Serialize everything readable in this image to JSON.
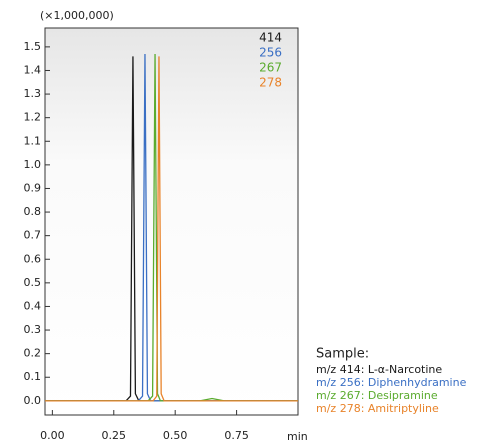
{
  "chart_data": {
    "type": "line",
    "y_unit_label": "(×1,000,000)",
    "x_unit_label": "min",
    "sample_title": "Sample:",
    "xlim": [
      -0.03,
      1.0
    ],
    "ylim": [
      -0.06,
      1.58
    ],
    "xticks": [
      {
        "value": 0,
        "label": "0.00"
      },
      {
        "value": 0.25,
        "label": "0.25"
      },
      {
        "value": 0.5,
        "label": "0.50"
      },
      {
        "value": 0.75,
        "label": "0.75"
      }
    ],
    "yticks": [
      {
        "value": 0,
        "label": "0.0"
      },
      {
        "value": 0.1,
        "label": "0.1"
      },
      {
        "value": 0.2,
        "label": "0.2"
      },
      {
        "value": 0.3,
        "label": "0.3"
      },
      {
        "value": 0.4,
        "label": "0.4"
      },
      {
        "value": 0.5,
        "label": "0.5"
      },
      {
        "value": 0.6,
        "label": "0.6"
      },
      {
        "value": 0.7,
        "label": "0.7"
      },
      {
        "value": 0.8,
        "label": "0.8"
      },
      {
        "value": 0.9,
        "label": "0.9"
      },
      {
        "value": 1,
        "label": "1.0"
      },
      {
        "value": 1.1,
        "label": "1.1"
      },
      {
        "value": 1.2,
        "label": "1.2"
      },
      {
        "value": 1.3,
        "label": "1.3"
      },
      {
        "value": 1.4,
        "label": "1.4"
      },
      {
        "value": 1.5,
        "label": "1.5"
      }
    ],
    "series": [
      {
        "name": "414",
        "description": "m/z 414: L-α-Narcotine",
        "color": "#1a1a1a",
        "x": [
          -0.03,
          0.3,
          0.318,
          0.328,
          0.338,
          0.352,
          1.0
        ],
        "values": [
          0,
          0,
          0.02,
          1.46,
          0.03,
          0,
          0
        ]
      },
      {
        "name": "256",
        "description": "m/z 256: Diphenhydramine",
        "color": "#3a6fc4",
        "x": [
          -0.03,
          0.35,
          0.367,
          0.377,
          0.387,
          0.4,
          1.0
        ],
        "values": [
          0,
          0,
          0.02,
          1.47,
          0.03,
          0,
          0
        ]
      },
      {
        "name": "267",
        "description": "m/z 267: Desipramine",
        "color": "#5aab2e",
        "x": [
          -0.03,
          0.39,
          0.408,
          0.418,
          0.428,
          0.44,
          0.6,
          0.65,
          0.7,
          1.0
        ],
        "values": [
          0,
          0,
          0.02,
          1.47,
          0.03,
          0,
          0,
          0.01,
          0,
          0
        ]
      },
      {
        "name": "278",
        "description": "m/z 278: Amitriptyline",
        "color": "#e8832a",
        "x": [
          -0.03,
          0.41,
          0.425,
          0.434,
          0.443,
          0.455,
          1.0
        ],
        "values": [
          0,
          0,
          0.02,
          1.46,
          0.03,
          0,
          0
        ]
      }
    ]
  }
}
